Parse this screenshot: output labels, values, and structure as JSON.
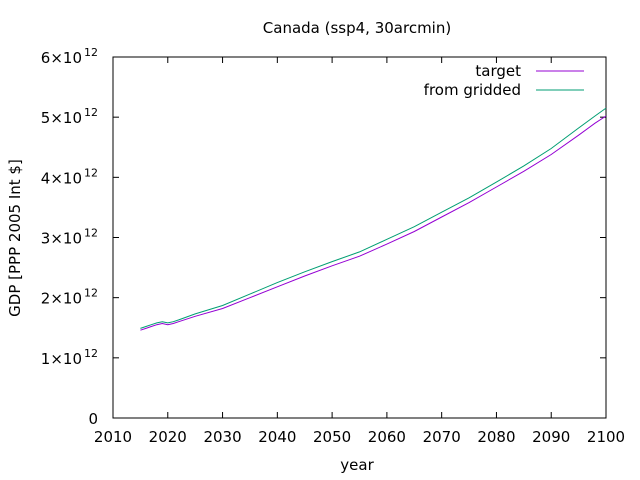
{
  "chart_data": {
    "type": "line",
    "title": "Canada (ssp4, 30arcmin)",
    "xlabel": "year",
    "ylabel": "GDP [PPP 2005 Int $]",
    "xlim": [
      2010,
      2100
    ],
    "ylim": [
      0,
      6000000000000
    ],
    "x_ticks": [
      "2010",
      "2020",
      "2030",
      "2040",
      "2050",
      "2060",
      "2070",
      "2080",
      "2090",
      "2100"
    ],
    "y_ticks": [
      {
        "value": 0,
        "mantissa": "0",
        "times": "",
        "base": "",
        "exponent": ""
      },
      {
        "value": 1000000000000,
        "mantissa": "1",
        "times": "×",
        "base": "10",
        "exponent": "12"
      },
      {
        "value": 2000000000000,
        "mantissa": "2",
        "times": "×",
        "base": "10",
        "exponent": "12"
      },
      {
        "value": 3000000000000,
        "mantissa": "3",
        "times": "×",
        "base": "10",
        "exponent": "12"
      },
      {
        "value": 4000000000000,
        "mantissa": "4",
        "times": "×",
        "base": "10",
        "exponent": "12"
      },
      {
        "value": 5000000000000,
        "mantissa": "5",
        "times": "×",
        "base": "10",
        "exponent": "12"
      },
      {
        "value": 6000000000000,
        "mantissa": "6",
        "times": "×",
        "base": "10",
        "exponent": "12"
      }
    ],
    "legend_position": "top-right",
    "grid": false,
    "x": [
      2015,
      2016,
      2017,
      2018,
      2019,
      2020,
      2021,
      2022,
      2025,
      2030,
      2035,
      2040,
      2045,
      2050,
      2055,
      2060,
      2065,
      2070,
      2075,
      2080,
      2085,
      2090,
      2095,
      2098,
      2100
    ],
    "series": [
      {
        "name": "target",
        "color": "#9400d3",
        "values": [
          1460000000000.0,
          1490000000000.0,
          1520000000000.0,
          1550000000000.0,
          1570000000000.0,
          1550000000000.0,
          1570000000000.0,
          1600000000000.0,
          1690000000000.0,
          1820000000000.0,
          2000000000000.0,
          2180000000000.0,
          2360000000000.0,
          2530000000000.0,
          2690000000000.0,
          2890000000000.0,
          3100000000000.0,
          3340000000000.0,
          3580000000000.0,
          3840000000000.0,
          4100000000000.0,
          4380000000000.0,
          4700000000000.0,
          4900000000000.0,
          5020000000000.0
        ]
      },
      {
        "name": "from gridded",
        "color": "#009e73",
        "values": [
          1490000000000.0,
          1520000000000.0,
          1550000000000.0,
          1580000000000.0,
          1600000000000.0,
          1580000000000.0,
          1600000000000.0,
          1630000000000.0,
          1730000000000.0,
          1870000000000.0,
          2060000000000.0,
          2250000000000.0,
          2430000000000.0,
          2600000000000.0,
          2760000000000.0,
          2970000000000.0,
          3180000000000.0,
          3420000000000.0,
          3660000000000.0,
          3920000000000.0,
          4190000000000.0,
          4480000000000.0,
          4820000000000.0,
          5020000000000.0,
          5150000000000.0
        ]
      }
    ]
  }
}
